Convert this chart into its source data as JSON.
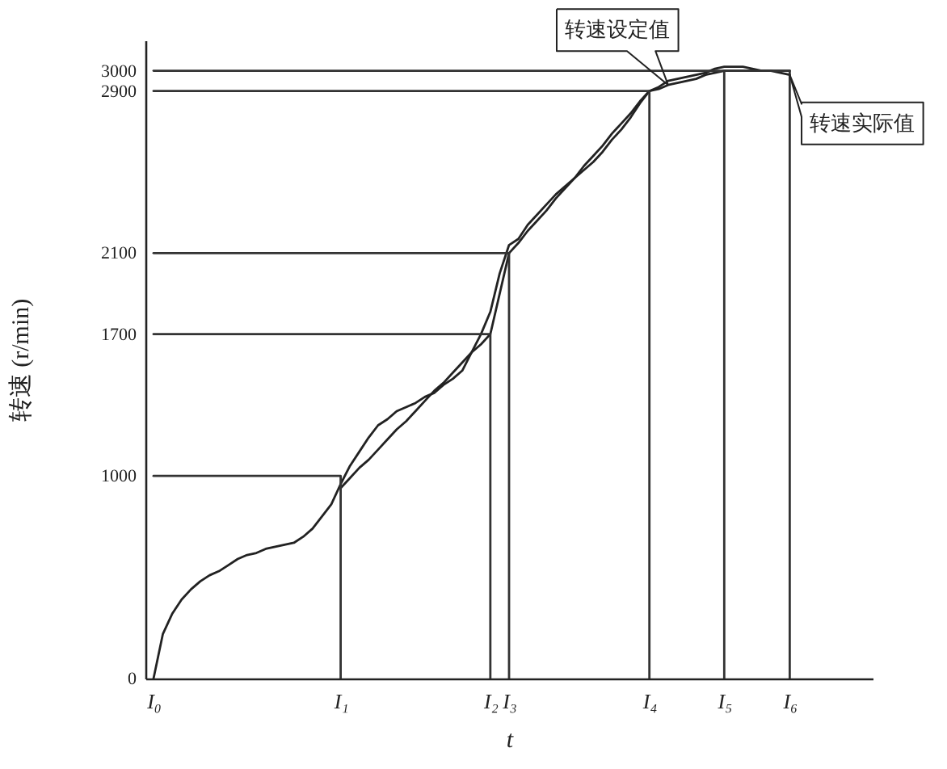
{
  "chart_data": {
    "type": "line",
    "xlabel": "t",
    "ylabel": "转速 (r/min)",
    "categories": [
      "I₀",
      null,
      null,
      null,
      null,
      null,
      null,
      null,
      null,
      null,
      null,
      null,
      null,
      null,
      null,
      null,
      null,
      null,
      null,
      null,
      "I₁",
      null,
      null,
      null,
      null,
      null,
      null,
      null,
      null,
      null,
      null,
      null,
      null,
      null,
      null,
      null,
      "I₂",
      null,
      "I₃",
      null,
      null,
      null,
      null,
      null,
      null,
      null,
      null,
      null,
      null,
      null,
      null,
      null,
      null,
      "I₄",
      null,
      null,
      null,
      null,
      null,
      null,
      null,
      "I₅",
      null,
      null,
      null,
      null,
      null,
      null,
      "I₆",
      null,
      null,
      null,
      null,
      null,
      null,
      null,
      null
    ],
    "ylim": [
      0,
      3150
    ],
    "yticks": [
      0,
      1000,
      1700,
      2100,
      2900,
      3000
    ],
    "series": [
      {
        "name": "转速设定值",
        "color": "#222222",
        "values": [
          null,
          null,
          null,
          null,
          null,
          null,
          null,
          null,
          null,
          null,
          null,
          null,
          null,
          null,
          null,
          null,
          null,
          null,
          null,
          null,
          940,
          990,
          1040,
          1080,
          1130,
          1180,
          1230,
          1270,
          1320,
          1370,
          1420,
          1460,
          1510,
          1560,
          1610,
          1650,
          1700,
          1900,
          2100,
          2150,
          2210,
          2260,
          2310,
          2370,
          2420,
          2470,
          2530,
          2580,
          2630,
          2690,
          2740,
          2790,
          2850,
          2900,
          2910,
          2930,
          2940,
          2950,
          2960,
          2980,
          2990,
          3000,
          3000,
          3000,
          3000,
          3000,
          3000,
          3000,
          3000,
          null,
          null,
          null,
          null,
          null,
          null,
          null,
          null
        ]
      },
      {
        "name": "转速实际值",
        "color": "#222222",
        "values": [
          0,
          220,
          320,
          390,
          440,
          480,
          510,
          530,
          560,
          590,
          610,
          620,
          640,
          650,
          660,
          670,
          700,
          740,
          800,
          860,
          960,
          1050,
          1120,
          1190,
          1250,
          1280,
          1320,
          1340,
          1360,
          1390,
          1410,
          1450,
          1480,
          1520,
          1610,
          1700,
          1810,
          2000,
          2140,
          2170,
          2240,
          2290,
          2340,
          2390,
          2430,
          2470,
          2510,
          2550,
          2600,
          2660,
          2710,
          2770,
          2840,
          2900,
          2920,
          2950,
          2960,
          2970,
          2980,
          2990,
          3010,
          3020,
          3020,
          3020,
          3010,
          3000,
          3000,
          2990,
          2980,
          null,
          null,
          null,
          null,
          null,
          null,
          null,
          null
        ]
      },
      {
        "color": "#333333",
        "values": [
          1000,
          1000,
          1000,
          1000,
          1000,
          1000,
          1000,
          1000,
          1000,
          1000,
          1000,
          1000,
          1000,
          1000,
          1000,
          1000,
          1000,
          1000,
          1000,
          1000,
          1000,
          null,
          null,
          null,
          null,
          null,
          null,
          null,
          null,
          null,
          null,
          null,
          null,
          null,
          null,
          null,
          null,
          null,
          null,
          null,
          null,
          null,
          null,
          null,
          null,
          null,
          null,
          null,
          null,
          null,
          null,
          null,
          null,
          null,
          null,
          null,
          null,
          null,
          null,
          null,
          null,
          null,
          null,
          null,
          null,
          null,
          null,
          null,
          null,
          null,
          null,
          null,
          null,
          null,
          null,
          null,
          null
        ]
      },
      {
        "color": "#333333",
        "values": [
          1700,
          1700,
          1700,
          1700,
          1700,
          1700,
          1700,
          1700,
          1700,
          1700,
          1700,
          1700,
          1700,
          1700,
          1700,
          1700,
          1700,
          1700,
          1700,
          1700,
          1700,
          1700,
          1700,
          1700,
          1700,
          1700,
          1700,
          1700,
          1700,
          1700,
          1700,
          1700,
          1700,
          1700,
          1700,
          1700,
          1700,
          null,
          null,
          null,
          null,
          null,
          null,
          null,
          null,
          null,
          null,
          null,
          null,
          null,
          null,
          null,
          null,
          null,
          null,
          null,
          null,
          null,
          null,
          null,
          null,
          null,
          null,
          null,
          null,
          null,
          null,
          null,
          null,
          null,
          null,
          null,
          null,
          null,
          null,
          null,
          null
        ]
      },
      {
        "color": "#333333",
        "values": [
          2100,
          2100,
          2100,
          2100,
          2100,
          2100,
          2100,
          2100,
          2100,
          2100,
          2100,
          2100,
          2100,
          2100,
          2100,
          2100,
          2100,
          2100,
          2100,
          2100,
          2100,
          2100,
          2100,
          2100,
          2100,
          2100,
          2100,
          2100,
          2100,
          2100,
          2100,
          2100,
          2100,
          2100,
          2100,
          2100,
          2100,
          2100,
          2100,
          null,
          null,
          null,
          null,
          null,
          null,
          null,
          null,
          null,
          null,
          null,
          null,
          null,
          null,
          null,
          null,
          null,
          null,
          null,
          null,
          null,
          null,
          null,
          null,
          null,
          null,
          null,
          null,
          null,
          null,
          null,
          null,
          null,
          null,
          null,
          null,
          null,
          null
        ]
      },
      {
        "color": "#333333",
        "values": [
          2900,
          2900,
          2900,
          2900,
          2900,
          2900,
          2900,
          2900,
          2900,
          2900,
          2900,
          2900,
          2900,
          2900,
          2900,
          2900,
          2900,
          2900,
          2900,
          2900,
          2900,
          2900,
          2900,
          2900,
          2900,
          2900,
          2900,
          2900,
          2900,
          2900,
          2900,
          2900,
          2900,
          2900,
          2900,
          2900,
          2900,
          2900,
          2900,
          2900,
          2900,
          2900,
          2900,
          2900,
          2900,
          2900,
          2900,
          2900,
          2900,
          2900,
          2900,
          2900,
          2900,
          2900,
          null,
          null,
          null,
          null,
          null,
          null,
          null,
          null,
          null,
          null,
          null,
          null,
          null,
          null,
          null,
          null,
          null,
          null,
          null,
          null,
          null,
          null,
          null
        ]
      },
      {
        "color": "#333333",
        "values": [
          3000,
          3000,
          3000,
          3000,
          3000,
          3000,
          3000,
          3000,
          3000,
          3000,
          3000,
          3000,
          3000,
          3000,
          3000,
          3000,
          3000,
          3000,
          3000,
          3000,
          3000,
          3000,
          3000,
          3000,
          3000,
          3000,
          3000,
          3000,
          3000,
          3000,
          3000,
          3000,
          3000,
          3000,
          3000,
          3000,
          3000,
          3000,
          3000,
          3000,
          3000,
          3000,
          3000,
          3000,
          3000,
          3000,
          3000,
          3000,
          3000,
          3000,
          3000,
          3000,
          3000,
          3000,
          3000,
          3000,
          3000,
          3000,
          3000,
          3000,
          3000,
          3000,
          3000,
          3000,
          3000,
          3000,
          3000,
          3000,
          3000,
          null,
          null,
          null,
          null,
          null,
          null,
          null,
          null
        ]
      },
      {
        "type": "bar",
        "color": "#333333",
        "values": [
          null,
          null,
          null,
          null,
          null,
          null,
          null,
          null,
          null,
          null,
          null,
          null,
          null,
          null,
          null,
          null,
          null,
          null,
          null,
          null,
          1000,
          null,
          null,
          null,
          null,
          null,
          null,
          null,
          null,
          null,
          null,
          null,
          null,
          null,
          null,
          null,
          1700,
          null,
          2100,
          null,
          null,
          null,
          null,
          null,
          null,
          null,
          null,
          null,
          null,
          null,
          null,
          null,
          null,
          2900,
          null,
          null,
          null,
          null,
          null,
          null,
          null,
          3000,
          null,
          null,
          null,
          null,
          null,
          null,
          3000,
          null,
          null,
          null,
          null,
          null,
          null,
          null,
          null
        ]
      }
    ]
  }
}
